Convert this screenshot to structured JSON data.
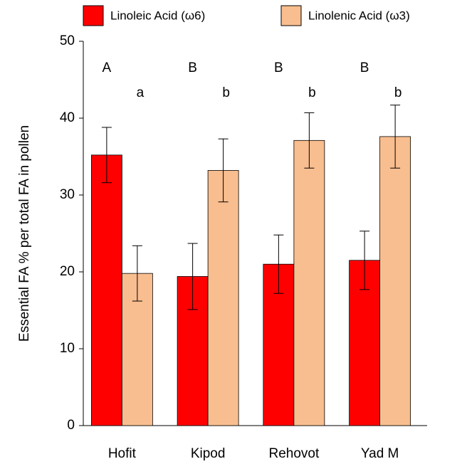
{
  "chart_data": {
    "type": "bar",
    "y_label": "Essential FA % per total FA in pollen",
    "categories": [
      "Hofit",
      "Kipod",
      "Rehovot",
      "Yad M"
    ],
    "series": [
      {
        "name": "Linoleic Acid (ω6)",
        "color": "#ff0000",
        "values": [
          35.2,
          19.4,
          21,
          21.5
        ],
        "errors": [
          3.6,
          4.3,
          3.8,
          3.8
        ],
        "group_letters": [
          "A",
          "B",
          "B",
          "B"
        ]
      },
      {
        "name": "Linolenic Acid (ω3)",
        "color": "#f9be8f",
        "values": [
          19.8,
          33.2,
          37.1,
          37.6
        ],
        "errors": [
          3.6,
          4.1,
          3.6,
          4.1
        ],
        "group_letters": [
          "a",
          "b",
          "b",
          "b"
        ]
      }
    ],
    "ylim": [
      0,
      50
    ],
    "yticks": [
      0,
      10,
      20,
      30,
      40,
      50
    ],
    "grid": false,
    "legend": "top"
  }
}
